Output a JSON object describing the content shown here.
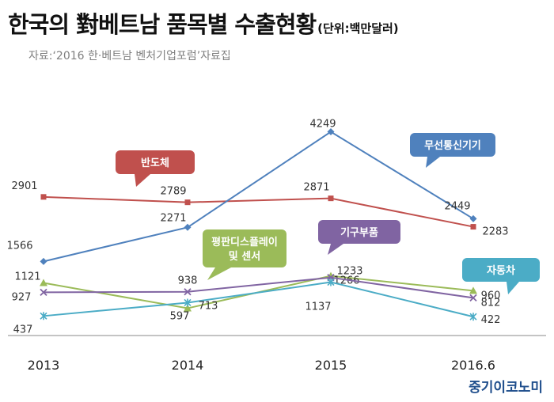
{
  "title": "한국의 對베트남 품목별 수출현황",
  "unit": "(단위:백만달러)",
  "source": "자료:‘2016 한·베트남 벤처기업포럼’자료집",
  "brand": "중기이코노미",
  "colors": {
    "반도체": "#c0504d",
    "무선통신기기": "#4f81bd",
    "평판디스플레이 및 센서": "#9bbb59",
    "기구부품": "#8064a2",
    "자동차": "#4bacc6"
  },
  "chart_data": {
    "type": "line",
    "categories": [
      "2013",
      "2014",
      "2015",
      "2016.6"
    ],
    "series": [
      {
        "name": "반도체",
        "values": [
          2901,
          2789,
          2871,
          2283
        ]
      },
      {
        "name": "무선통신기기",
        "values": [
          1566,
          2271,
          4249,
          2449
        ]
      },
      {
        "name": "평판디스플레이 및 센서",
        "values": [
          1121,
          597,
          1266,
          960
        ]
      },
      {
        "name": "기구부품",
        "values": [
          927,
          938,
          1233,
          812
        ]
      },
      {
        "name": "자동차",
        "values": [
          437,
          713,
          1137,
          422
        ]
      }
    ],
    "callouts": [
      {
        "series": "반도체",
        "text": [
          "반도체"
        ]
      },
      {
        "series": "무선통신기기",
        "text": [
          "무선통신기기"
        ]
      },
      {
        "series": "평판디스플레이 및 센서",
        "text": [
          "평판디스플레이",
          "및 센서"
        ]
      },
      {
        "series": "기구부품",
        "text": [
          "기구부품"
        ]
      },
      {
        "series": "자동차",
        "text": [
          "자동차"
        ]
      }
    ],
    "ylim": [
      0,
      4500
    ],
    "grid": false,
    "legend": "callouts"
  }
}
